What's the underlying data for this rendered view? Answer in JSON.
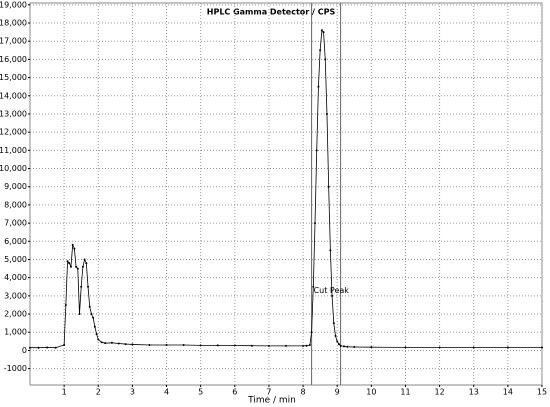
{
  "chart_data": {
    "type": "line",
    "title": "HPLC Gamma Detector / CPS",
    "x_label": "Time / min",
    "annotation": "Cut Peak",
    "cut_lines": [
      8.25,
      9.1
    ],
    "xlim": [
      0,
      15
    ],
    "xticks": [
      1,
      2,
      3,
      4,
      5,
      6,
      7,
      8,
      9,
      10,
      11,
      12,
      13,
      14,
      15
    ],
    "ylim": [
      -1900,
      19100
    ],
    "yticks": [
      -1000,
      0,
      {
        "value": 1000,
        "label": "1,000"
      },
      {
        "value": 2000,
        "label": "2,000"
      },
      {
        "value": 3000,
        "label": "3,000"
      },
      {
        "value": 4000,
        "label": "4,000"
      },
      {
        "value": 5000,
        "label": "5,000"
      },
      {
        "value": 6000,
        "label": "6,000"
      },
      {
        "value": 7000,
        "label": "7,000"
      },
      {
        "value": 8000,
        "label": "8,000"
      },
      {
        "value": 9000,
        "label": "9,000"
      },
      {
        "value": 10000,
        "label": "10,000"
      },
      {
        "value": 11000,
        "label": "11,000"
      },
      {
        "value": 12000,
        "label": "12,000"
      },
      {
        "value": 13000,
        "label": "13,000"
      },
      {
        "value": 14000,
        "label": "14,000"
      },
      {
        "value": 15000,
        "label": "15,000"
      },
      {
        "value": 16000,
        "label": "16,000"
      },
      {
        "value": 17000,
        "label": "17,000"
      },
      {
        "value": 18000,
        "label": "18,000"
      },
      {
        "value": 19000,
        "label": "19,000"
      }
    ],
    "grid": true,
    "color": "#000000",
    "x": [
      0,
      0.25,
      0.5,
      0.75,
      1.0,
      1.05,
      1.1,
      1.15,
      1.2,
      1.25,
      1.3,
      1.35,
      1.4,
      1.45,
      1.5,
      1.55,
      1.6,
      1.65,
      1.7,
      1.75,
      1.8,
      1.85,
      1.9,
      1.95,
      2.0,
      2.1,
      2.2,
      2.4,
      2.6,
      2.8,
      3.0,
      3.5,
      4.0,
      4.5,
      5.0,
      5.5,
      6.0,
      6.5,
      7.0,
      7.5,
      8.0,
      8.1,
      8.2,
      8.25,
      8.3,
      8.35,
      8.4,
      8.45,
      8.5,
      8.55,
      8.6,
      8.65,
      8.7,
      8.75,
      8.8,
      8.85,
      8.9,
      8.95,
      9.0,
      9.05,
      9.1,
      9.2,
      9.3,
      9.5,
      10,
      11,
      12,
      13,
      14,
      15
    ],
    "values": [
      150,
      150,
      160,
      150,
      300,
      2500,
      4900,
      4800,
      4600,
      5800,
      5600,
      4600,
      4500,
      2000,
      3500,
      4600,
      5000,
      4800,
      3500,
      2400,
      2000,
      1800,
      1300,
      900,
      600,
      450,
      400,
      420,
      380,
      350,
      330,
      300,
      300,
      300,
      280,
      280,
      270,
      260,
      250,
      250,
      250,
      260,
      300,
      1000,
      3500,
      7000,
      11000,
      14500,
      16500,
      17600,
      17500,
      16000,
      13000,
      9000,
      5500,
      3000,
      1500,
      800,
      500,
      350,
      260,
      220,
      200,
      190,
      180,
      170,
      160,
      160,
      160,
      160
    ]
  }
}
